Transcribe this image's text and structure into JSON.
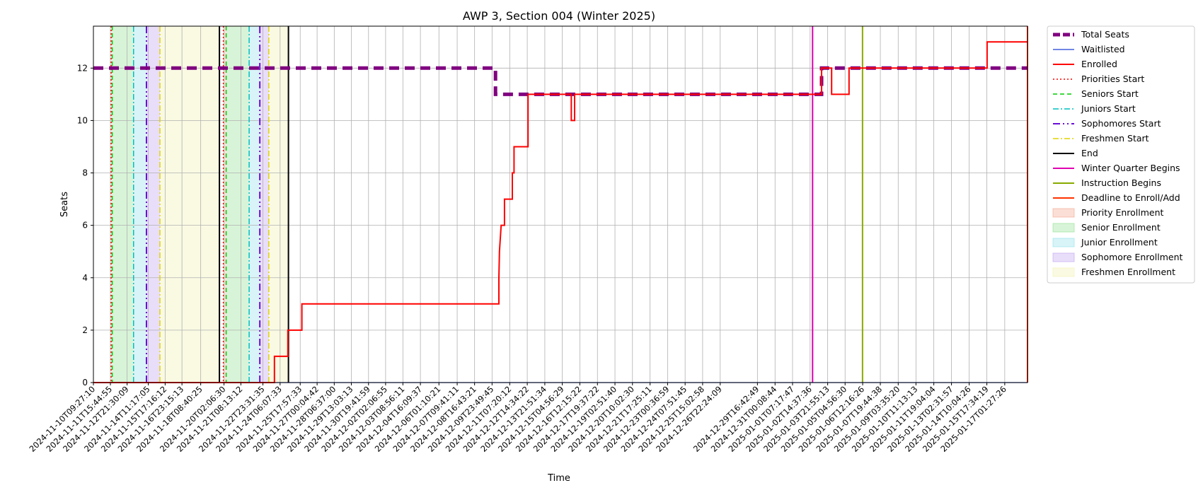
{
  "chart_data": {
    "type": "line",
    "title": "AWP 3, Section 004 (Winter 2025)",
    "xlabel": "Time",
    "ylabel": "Seats",
    "xlim": [
      "2024-11-10T09:27:10",
      "2025-01-18T18:00:00"
    ],
    "ylim": [
      0,
      13.6
    ],
    "y_ticks": [
      0,
      2,
      4,
      6,
      8,
      10,
      12
    ],
    "x_ticks": [
      "2024-11-10T09:27:10",
      "2024-11-11T15:44:55",
      "2024-11-12T21:30:09",
      "2024-11-14T11:17:05",
      "2024-11-15T17:16:12",
      "2024-11-16T23:15:13",
      "2024-11-18T08:40:25",
      "2024-11-20T02:06:30",
      "2024-11-21T08:13:12",
      "2024-11-22T23:31:35",
      "2024-11-24T06:07:33",
      "2024-11-25T17:57:33",
      "2024-11-27T00:04:42",
      "2024-11-28T06:37:00",
      "2024-11-29T13:03:13",
      "2024-11-30T19:41:59",
      "2024-12-02T02:06:55",
      "2024-12-03T08:56:11",
      "2024-12-04T16:09:37",
      "2024-12-06T01:10:21",
      "2024-12-07T09:41:11",
      "2024-12-08T16:43:21",
      "2024-12-09T23:49:45",
      "2024-12-11T07:20:12",
      "2024-12-12T14:34:22",
      "2024-12-13T21:51:34",
      "2024-12-15T04:56:29",
      "2024-12-16T12:15:22",
      "2024-12-17T19:37:22",
      "2024-12-19T02:51:40",
      "2024-12-20T10:02:30",
      "2024-12-21T17:25:11",
      "2024-12-23T00:36:59",
      "2024-12-24T07:51:45",
      "2024-12-25T15:02:58",
      "2024-12-26T22:24:09",
      "2024-12-29T16:42:49",
      "2024-12-31T00:08:44",
      "2025-01-01T07:17:47",
      "2025-01-02T14:37:36",
      "2025-01-03T21:55:13",
      "2025-01-05T04:56:30",
      "2025-01-06T12:16:26",
      "2025-01-07T19:44:38",
      "2025-01-09T03:35:20",
      "2025-01-10T11:13:13",
      "2025-01-11T19:04:04",
      "2025-01-13T02:31:57",
      "2025-01-14T10:04:26",
      "2025-01-15T17:34:19",
      "2025-01-17T01:27:26"
    ],
    "grid": true,
    "legend_position": "outside-right",
    "series": [
      {
        "name": "Total Seats",
        "color": "#800080",
        "style": "dashed-thick",
        "points": [
          [
            "2024-11-10T09:27:10",
            12
          ],
          [
            "2024-12-10T06:00:00",
            12
          ],
          [
            "2024-12-10T06:00:00",
            11
          ],
          [
            "2025-01-03T11:00:00",
            11
          ],
          [
            "2025-01-03T11:00:00",
            12
          ],
          [
            "2025-01-18T18:00:00",
            12
          ]
        ]
      },
      {
        "name": "Waitlisted",
        "color": "#1f3fd8",
        "style": "solid-thin",
        "points": [
          [
            "2024-11-10T09:27:10",
            0
          ],
          [
            "2025-01-18T18:00:00",
            0
          ]
        ]
      },
      {
        "name": "Enrolled",
        "color": "#ff0000",
        "style": "solid",
        "points": [
          [
            "2024-11-10T09:27:10",
            0
          ],
          [
            "2024-11-23T20:00:00",
            0
          ],
          [
            "2024-11-23T20:00:00",
            1
          ],
          [
            "2024-11-24T20:00:00",
            1
          ],
          [
            "2024-11-24T20:00:00",
            2
          ],
          [
            "2024-11-25T21:00:00",
            2
          ],
          [
            "2024-11-25T21:00:00",
            3
          ],
          [
            "2024-12-10T12:00:00",
            3
          ],
          [
            "2024-12-10T12:00:00",
            4
          ],
          [
            "2024-12-10T13:00:00",
            5
          ],
          [
            "2024-12-10T16:00:00",
            6
          ],
          [
            "2024-12-10T22:00:00",
            6
          ],
          [
            "2024-12-10T22:00:00",
            7
          ],
          [
            "2024-12-11T12:00:00",
            7
          ],
          [
            "2024-12-11T12:00:00",
            8
          ],
          [
            "2024-12-11T15:00:00",
            8
          ],
          [
            "2024-12-11T15:00:00",
            9
          ],
          [
            "2024-12-12T16:00:00",
            9
          ],
          [
            "2024-12-12T16:00:00",
            11
          ],
          [
            "2024-12-15T21:00:00",
            11
          ],
          [
            "2024-12-15T21:00:00",
            10
          ],
          [
            "2024-12-16T03:00:00",
            10
          ],
          [
            "2024-12-16T03:00:00",
            11
          ],
          [
            "2025-01-03T11:00:00",
            11
          ],
          [
            "2025-01-03T11:00:00",
            12
          ],
          [
            "2025-01-04T05:00:00",
            12
          ],
          [
            "2025-01-04T05:00:00",
            11
          ],
          [
            "2025-01-05T12:00:00",
            11
          ],
          [
            "2025-01-05T12:00:00",
            12
          ],
          [
            "2025-01-15T18:00:00",
            12
          ],
          [
            "2025-01-15T18:00:00",
            13
          ],
          [
            "2025-01-18T18:00:00",
            13
          ]
        ]
      }
    ],
    "events": [
      {
        "name": "Priorities Start",
        "color": "#ff0000",
        "style": "dotted",
        "at": [
          "2024-11-11T17:00:00",
          "2024-11-20T01:00:00"
        ]
      },
      {
        "name": "Seniors Start",
        "color": "#00cc00",
        "style": "dashed",
        "at": [
          "2024-11-11T19:00:00",
          "2024-11-20T06:00:00"
        ]
      },
      {
        "name": "Juniors Start",
        "color": "#00bfbf",
        "style": "dashdot",
        "at": [
          "2024-11-13T09:00:00",
          "2024-11-21T23:00:00"
        ]
      },
      {
        "name": "Sophomores Start",
        "color": "#6a0dd8",
        "style": "dashdotdot",
        "at": [
          "2024-11-14T08:00:00",
          "2024-11-22T18:00:00"
        ]
      },
      {
        "name": "Freshmen Start",
        "color": "#e0d400",
        "style": "dashdot",
        "at": [
          "2024-11-15T08:00:00",
          "2024-11-23T10:00:00"
        ]
      },
      {
        "name": "End",
        "color": "#000000",
        "style": "solid",
        "at": [
          "2024-11-19T18:00:00",
          "2024-11-24T21:00:00"
        ]
      },
      {
        "name": "Winter Quarter Begins",
        "color": "#e000b0",
        "style": "solid",
        "at": [
          "2025-01-02T19:00:00"
        ]
      },
      {
        "name": "Instruction Begins",
        "color": "#88aa00",
        "style": "solid",
        "at": [
          "2025-01-06T12:00:00"
        ]
      },
      {
        "name": "Deadline to Enroll/Add",
        "color": "#ff3300",
        "style": "solid",
        "at": [
          "2025-01-18T18:00:00"
        ]
      }
    ],
    "periods": [
      {
        "name": "Priority Enrollment",
        "color": "#f4a38a",
        "ranges": [
          [
            "2024-11-11T17:00:00",
            "2024-11-11T19:00:00"
          ],
          [
            "2024-11-20T01:00:00",
            "2024-11-20T06:00:00"
          ]
        ]
      },
      {
        "name": "Senior Enrollment",
        "color": "#90e090",
        "ranges": [
          [
            "2024-11-11T19:00:00",
            "2024-11-13T09:00:00"
          ],
          [
            "2024-11-20T06:00:00",
            "2024-11-21T23:00:00"
          ]
        ]
      },
      {
        "name": "Junior Enrollment",
        "color": "#90e0ea",
        "ranges": [
          [
            "2024-11-13T09:00:00",
            "2024-11-14T08:00:00"
          ],
          [
            "2024-11-21T23:00:00",
            "2024-11-22T18:00:00"
          ]
        ]
      },
      {
        "name": "Sophomore Enrollment",
        "color": "#c0a0f0",
        "ranges": [
          [
            "2024-11-14T08:00:00",
            "2024-11-15T08:00:00"
          ],
          [
            "2024-11-22T18:00:00",
            "2024-11-23T10:00:00"
          ]
        ]
      },
      {
        "name": "Freshmen Enrollment",
        "color": "#f2f2b0",
        "ranges": [
          [
            "2024-11-15T08:00:00",
            "2024-11-19T18:00:00"
          ],
          [
            "2024-11-23T10:00:00",
            "2024-11-24T21:00:00"
          ]
        ]
      }
    ]
  }
}
